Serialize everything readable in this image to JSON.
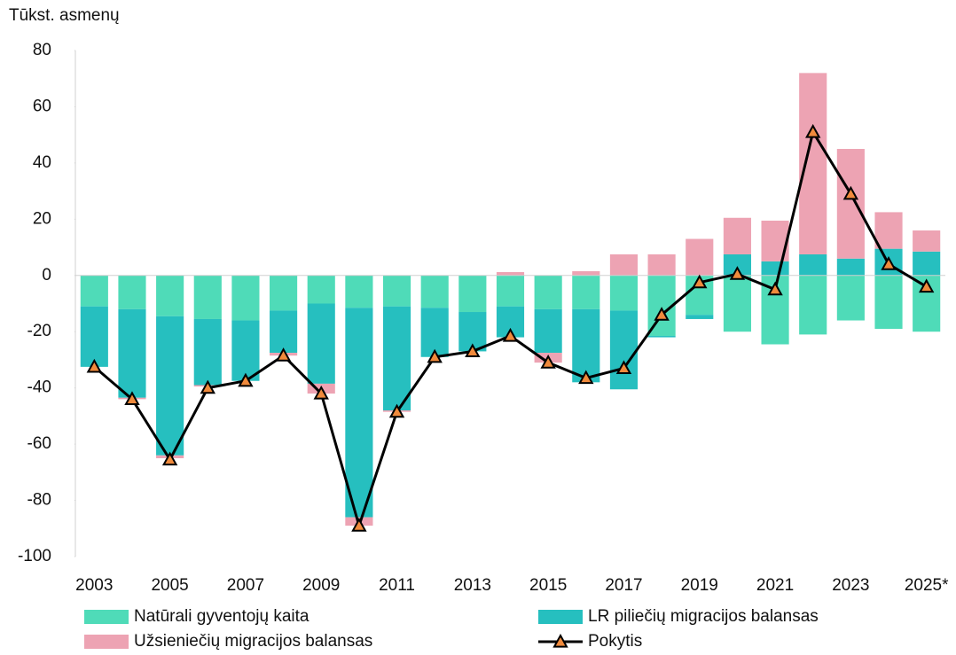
{
  "chart_data": {
    "type": "bar",
    "stacked": true,
    "y_label": "Tūkst. asmenų",
    "categories": [
      "2003",
      null,
      "2005",
      null,
      "2007",
      null,
      "2009",
      null,
      "2011",
      null,
      "2013",
      null,
      "2015",
      null,
      "2017",
      null,
      "2019",
      null,
      "2021",
      null,
      "2023",
      null,
      "2025*"
    ],
    "series": [
      {
        "name": "Natūrali gyventojų kaita",
        "color": "#4fdbb8",
        "type": "bar",
        "values": [
          -11,
          -12,
          -14.5,
          -15.5,
          -16,
          -12.5,
          -10,
          -11.5,
          -11,
          -11.5,
          -13,
          -11,
          -12,
          -12,
          -12.5,
          -21.5,
          -14,
          -20,
          -24.5,
          -21,
          -16,
          -19,
          -20
        ]
      },
      {
        "name": "LR piliečių migracijos balansas",
        "color": "#26bfbf",
        "type": "bar",
        "values": [
          -21.5,
          -31.5,
          -49.5,
          -23.5,
          -21.5,
          -15,
          -28.5,
          -74.5,
          -37,
          -17.5,
          -14,
          -11,
          -15.5,
          -26,
          -28,
          -0.5,
          -1.5,
          7.5,
          5,
          7.5,
          6,
          9.5,
          8.5
        ]
      },
      {
        "name": "Užsieniečių migracijos balansas",
        "color": "#eda3b3",
        "type": "bar",
        "values": [
          0,
          -0.5,
          -1,
          -0.5,
          0,
          -1,
          -3.5,
          -3,
          -0.5,
          0,
          0,
          1.2,
          -3.5,
          1.5,
          7.5,
          7.5,
          13,
          13,
          14.5,
          64.5,
          39,
          13,
          7.5
        ]
      },
      {
        "name": "Pokytis",
        "color": "#000000",
        "marker_color": "#f08a3c",
        "type": "line",
        "values": [
          -32.5,
          -44,
          -65.5,
          -40,
          -37.5,
          -28.5,
          -42,
          -89,
          -48.5,
          -29,
          -27,
          -21.5,
          -31,
          -36.5,
          -33,
          -14,
          -2.5,
          0.5,
          -5,
          51,
          29,
          4,
          -4
        ]
      }
    ],
    "ylim": [
      -100,
      80
    ],
    "yticks": [
      -100,
      -80,
      -60,
      -40,
      -20,
      0,
      20,
      40,
      60,
      80
    ],
    "grid": false
  }
}
